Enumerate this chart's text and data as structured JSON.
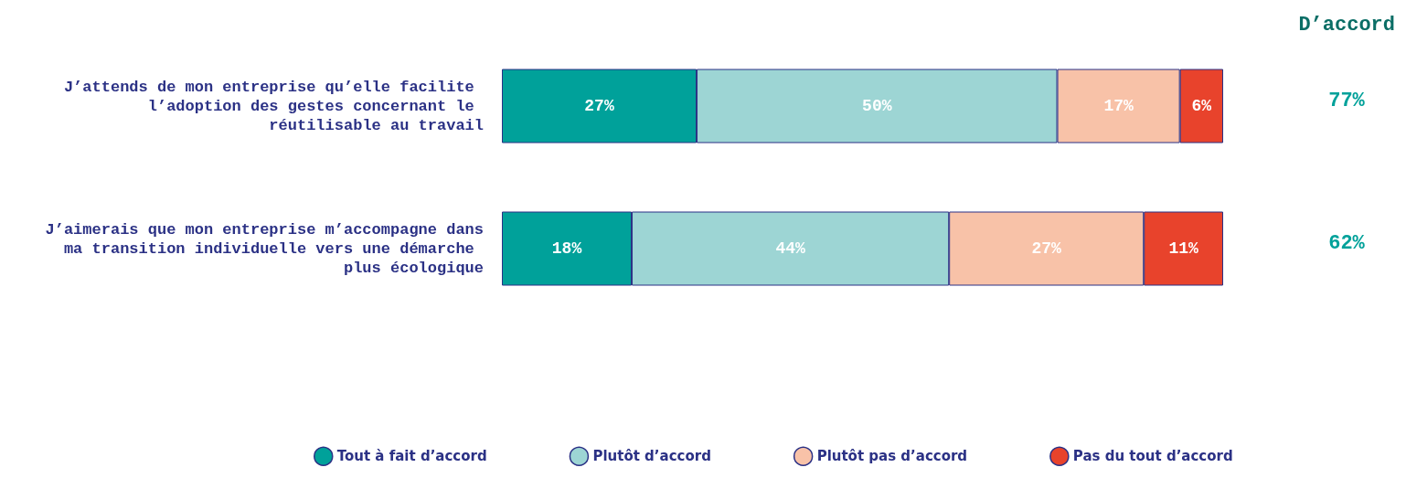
{
  "chart_data": {
    "type": "bar",
    "orientation": "horizontal",
    "stacked": true,
    "tick_labels": "y",
    "grid": false,
    "legend": "bottom",
    "categories": [
      "J’attends de mon entreprise qu’elle facilite l’adoption des gestes concernant le réutilisable au travail",
      "J’aimerais que mon entreprise m’accompagne dans ma transition individuelle vers une démarche plus écologique"
    ],
    "series": [
      {
        "name": "Tout à fait d’accord",
        "color": "#00a19a",
        "values": [
          27,
          18
        ],
        "value_labels": [
          "27%",
          "18%"
        ]
      },
      {
        "name": "Plutôt d’accord",
        "color": "#9dd5d4",
        "values": [
          50,
          44
        ],
        "value_labels": [
          "50%",
          "44%"
        ]
      },
      {
        "name": "Plutôt pas d’accord",
        "color": "#f8c2a8",
        "values": [
          17,
          27
        ],
        "value_labels": [
          "17%",
          "27%"
        ]
      },
      {
        "name": "Pas du tout d’accord",
        "color": "#e8432c",
        "values": [
          6,
          11
        ],
        "value_labels": [
          "6%",
          "11%"
        ]
      }
    ],
    "annotations": [
      "D’accord",
      "77%",
      "62%"
    ]
  }
}
